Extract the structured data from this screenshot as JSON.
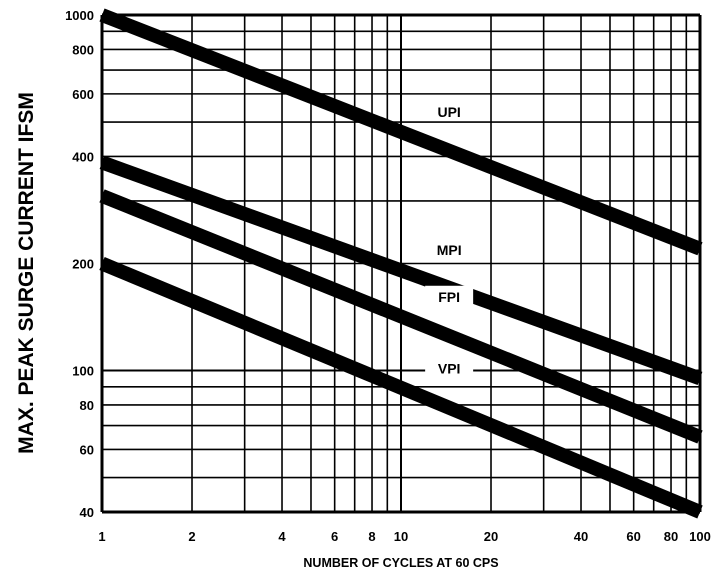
{
  "chart_data": {
    "type": "line",
    "title": "",
    "xlabel": "NUMBER OF CYCLES AT 60 CPS",
    "ylabel": "MAX. PEAK SURGE CURRENT IFSM",
    "xscale": "log",
    "yscale": "log",
    "xlim": [
      1,
      100
    ],
    "ylim": [
      40,
      1000
    ],
    "grid": true,
    "x_ticks": [
      1,
      2,
      4,
      6,
      8,
      10,
      20,
      40,
      60,
      80,
      100
    ],
    "x_tick_labels": [
      "1",
      "2",
      "4",
      "6",
      "8",
      "10",
      "20",
      "40",
      "60",
      "80",
      "100"
    ],
    "y_ticks": [
      40,
      60,
      80,
      100,
      200,
      400,
      600,
      800,
      1000
    ],
    "y_tick_labels": [
      "40",
      "60",
      "80",
      "100",
      "200",
      "400",
      "600",
      "800",
      "1000"
    ],
    "x_grid": [
      1,
      2,
      3,
      4,
      5,
      6,
      7,
      8,
      9,
      10,
      20,
      30,
      40,
      50,
      60,
      70,
      80,
      90,
      100
    ],
    "y_grid": [
      40,
      50,
      60,
      70,
      80,
      90,
      100,
      200,
      300,
      400,
      500,
      600,
      700,
      800,
      900,
      1000
    ],
    "series": [
      {
        "name": "UPI",
        "x": [
          1,
          100
        ],
        "y": [
          1000,
          220
        ],
        "label_at_x": 11.5
      },
      {
        "name": "MPI",
        "x": [
          1,
          100
        ],
        "y": [
          385,
          95
        ],
        "label_at_x": 11.5
      },
      {
        "name": "FPI",
        "x": [
          1,
          100
        ],
        "y": [
          310,
          65
        ],
        "label_at_x": 11.5
      },
      {
        "name": "VPI",
        "x": [
          1,
          100
        ],
        "y": [
          200,
          40
        ],
        "label_at_x": 11.5
      }
    ],
    "colors": {
      "line": "#000000",
      "grid": "#000000",
      "background": "#ffffff"
    }
  }
}
